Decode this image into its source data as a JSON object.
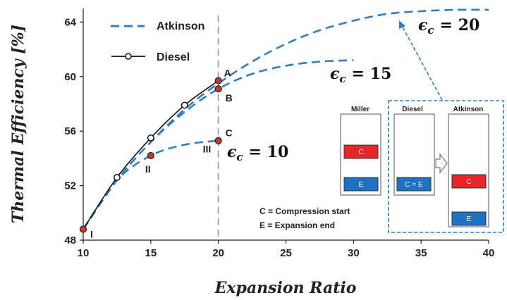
{
  "chart_data": {
    "type": "line",
    "xlabel": "Expansion  Ratio",
    "ylabel": "Thermal  Efficiency [%]",
    "xlim": [
      10,
      40
    ],
    "ylim": [
      48,
      65
    ],
    "x_ticks": [
      "10",
      "15",
      "20",
      "25",
      "30",
      "35",
      "40"
    ],
    "y_ticks": [
      "48",
      "52",
      "56",
      "60",
      "64"
    ],
    "grid": false,
    "legend": "top-left",
    "series": [
      {
        "name": "Diesel",
        "style": "solid-with-open-circles",
        "color": "#111111",
        "x": [
          10,
          12.5,
          15,
          17.5,
          20
        ],
        "y": [
          48.8,
          52.6,
          55.5,
          57.9,
          59.7
        ]
      },
      {
        "name": "Atkinson",
        "style": "dashed",
        "color": "#2f7fc1",
        "curves": [
          {
            "label": "ε_c = 10",
            "x": [
              10,
              12.5,
              15,
              17.5,
              20
            ],
            "y": [
              48.8,
              52.4,
              54.2,
              55.0,
              55.3
            ]
          },
          {
            "label": "ε_c = 15",
            "x": [
              10,
              12.5,
              15,
              17.5,
              20,
              22.5,
              25,
              27.5,
              30
            ],
            "y": [
              48.8,
              52.4,
              55.2,
              57.4,
              59.1,
              60.2,
              60.8,
              61.1,
              61.2
            ]
          },
          {
            "label": "ε_c = 20",
            "x": [
              10,
              12.5,
              15,
              17.5,
              20,
              22.5,
              25,
              27.5,
              30,
              32.5,
              35,
              37.5,
              40
            ],
            "y": [
              48.8,
              52.4,
              55.2,
              57.6,
              59.5,
              61.1,
              62.4,
              63.4,
              64.1,
              64.6,
              64.8,
              64.9,
              64.9
            ]
          }
        ]
      }
    ],
    "markers": [
      {
        "label": "A",
        "x": 20,
        "y": 59.7
      },
      {
        "label": "B",
        "x": 20,
        "y": 59.1
      },
      {
        "label": "C",
        "x": 20,
        "y": 55.3
      },
      {
        "label": "I",
        "x": 10,
        "y": 48.8
      },
      {
        "label": "II",
        "x": 15,
        "y": 54.2
      },
      {
        "label": "III",
        "x": 20,
        "y": 55.3
      }
    ],
    "reference_line_x": 20,
    "curve_labels": {
      "eps_symbol": "ϵ",
      "eps_sub": "c",
      "eps10": "= 10",
      "eps15": "= 15",
      "eps20": "= 20"
    },
    "inset": {
      "columns": [
        "Miller",
        "Diesel",
        "Atkinson"
      ],
      "compression_mark": "C",
      "expansion_mark": "E",
      "diesel_mark": "C = E",
      "legend_c": "C = Compression start",
      "legend_e": "E = Expansion end"
    },
    "colors": {
      "atkinson": "#2f7fc1",
      "diesel": "#111111",
      "marker_fill": "#c0392b",
      "compression_bar": "#e8262a",
      "expansion_bar": "#1e72c4",
      "reference_line": "#aaaaaa"
    }
  }
}
